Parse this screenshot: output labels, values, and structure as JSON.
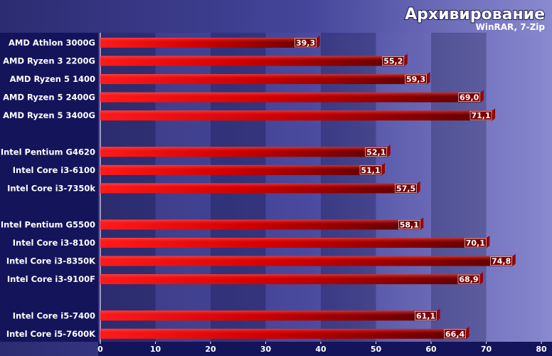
{
  "chart_data": {
    "type": "bar",
    "orientation": "horizontal",
    "title": "Архивирование",
    "subtitle": "WinRAR, 7-Zip",
    "xlim": [
      0,
      80
    ],
    "xticks": [
      "0",
      "10",
      "20",
      "30",
      "40",
      "50",
      "60",
      "70",
      "80"
    ],
    "groups": [
      {
        "categories": [
          "AMD Athlon 3000G",
          "AMD Ryzen 3 2200G",
          "AMD Ryzen 5 1400",
          "AMD Ryzen 5 2400G",
          "AMD Ryzen 5 3400G"
        ],
        "values": [
          39.3,
          55.2,
          59.3,
          69.0,
          71.1
        ],
        "labels": [
          "39,3",
          "55,2",
          "59,3",
          "69,0",
          "71,1"
        ]
      },
      {
        "categories": [
          "Intel Pentium G4620",
          "Intel Core i3-6100",
          "Intel Core i3-7350k"
        ],
        "values": [
          52.1,
          51.1,
          57.5
        ],
        "labels": [
          "52,1",
          "51,1",
          "57,5"
        ]
      },
      {
        "categories": [
          "Intel Pentium G5500",
          "Intel Core i3-8100",
          "Intel Core i3-8350K",
          "Intel Core i3-9100F"
        ],
        "values": [
          58.1,
          70.1,
          74.8,
          68.9
        ],
        "labels": [
          "58,1",
          "70,1",
          "74,8",
          "68,9"
        ]
      },
      {
        "categories": [
          "Intel Core i5-7400",
          "Intel Core i5-7600K"
        ],
        "values": [
          61.1,
          66.4
        ],
        "labels": [
          "61,1",
          "66,4"
        ]
      }
    ],
    "colors": {
      "bar_start": "#ff1a1a",
      "bar_end": "#5a0000",
      "bar_side": "#9a0000",
      "label_panel": "#14145a",
      "label_text": "#ffffff",
      "value_label_bg": "#7a0000",
      "value_label_text": "#ffffff",
      "title_text": "#ffffff",
      "plot_band_dark": "#38387c",
      "plot_band_light": "#4a4a96",
      "plot_right_light": "#8a8ad0",
      "axis_text": "#ffffff"
    }
  }
}
